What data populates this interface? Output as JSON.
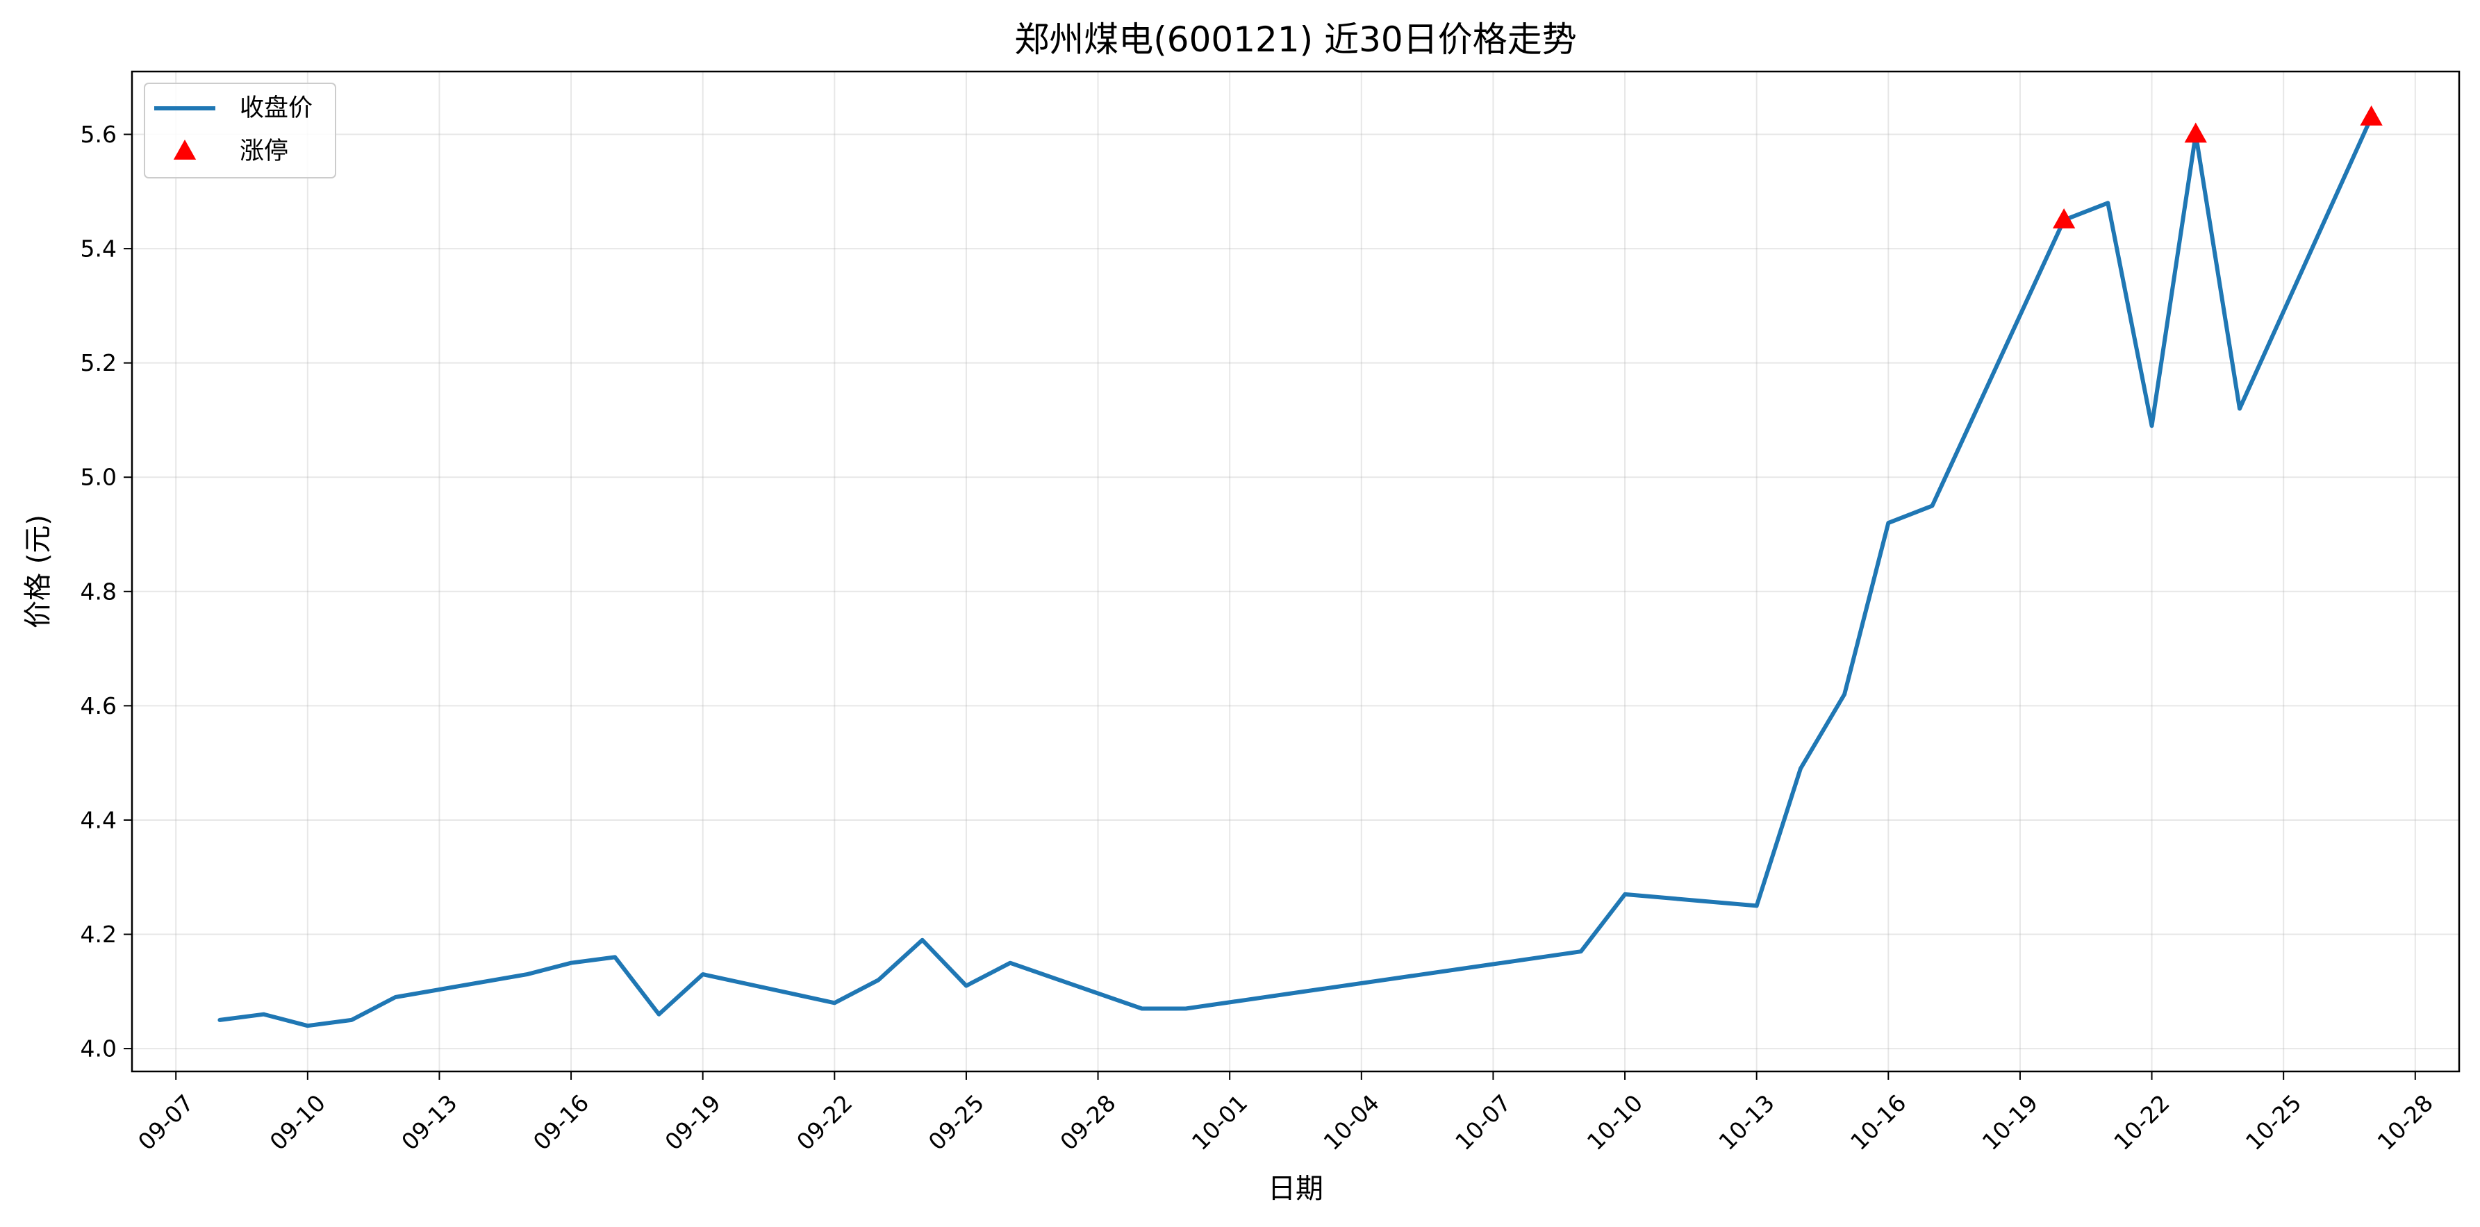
{
  "chart_data": {
    "type": "line",
    "title": "郑州煤电(600121) 近30日价格走势",
    "xlabel": "日期",
    "ylabel": "价格 (元)",
    "ylim": [
      3.96,
      5.71
    ],
    "xlim": [
      "2025-09-06",
      "2025-10-29"
    ],
    "x_ticks": [
      "09-07",
      "09-10",
      "09-13",
      "09-16",
      "09-19",
      "09-22",
      "09-25",
      "09-28",
      "10-01",
      "10-04",
      "10-07",
      "10-10",
      "10-13",
      "10-16",
      "10-19",
      "10-22",
      "10-25",
      "10-28"
    ],
    "y_ticks": [
      4.0,
      4.2,
      4.4,
      4.6,
      4.8,
      5.0,
      5.2,
      5.4,
      5.6
    ],
    "grid": true,
    "legend_position": "top-left",
    "series": [
      {
        "name": "收盘价",
        "type": "line",
        "color": "#1f77b4",
        "x": [
          "2025-09-08",
          "2025-09-09",
          "2025-09-10",
          "2025-09-11",
          "2025-09-12",
          "2025-09-15",
          "2025-09-16",
          "2025-09-17",
          "2025-09-18",
          "2025-09-19",
          "2025-09-22",
          "2025-09-23",
          "2025-09-24",
          "2025-09-25",
          "2025-09-26",
          "2025-09-29",
          "2025-09-30",
          "2025-10-09",
          "2025-10-10",
          "2025-10-13",
          "2025-10-14",
          "2025-10-15",
          "2025-10-16",
          "2025-10-17",
          "2025-10-20",
          "2025-10-21",
          "2025-10-22",
          "2025-10-23",
          "2025-10-24",
          "2025-10-27"
        ],
        "y": [
          4.05,
          4.06,
          4.04,
          4.05,
          4.09,
          4.13,
          4.15,
          4.16,
          4.06,
          4.13,
          4.08,
          4.12,
          4.19,
          4.11,
          4.15,
          4.07,
          4.07,
          4.17,
          4.27,
          4.25,
          4.49,
          4.62,
          4.92,
          4.95,
          5.45,
          5.48,
          5.09,
          5.6,
          5.12,
          5.63
        ]
      },
      {
        "name": "涨停",
        "type": "scatter",
        "marker": "triangle",
        "color": "#ff0000",
        "x": [
          "2025-10-20",
          "2025-10-23",
          "2025-10-27"
        ],
        "y": [
          5.45,
          5.6,
          5.63
        ]
      }
    ]
  }
}
